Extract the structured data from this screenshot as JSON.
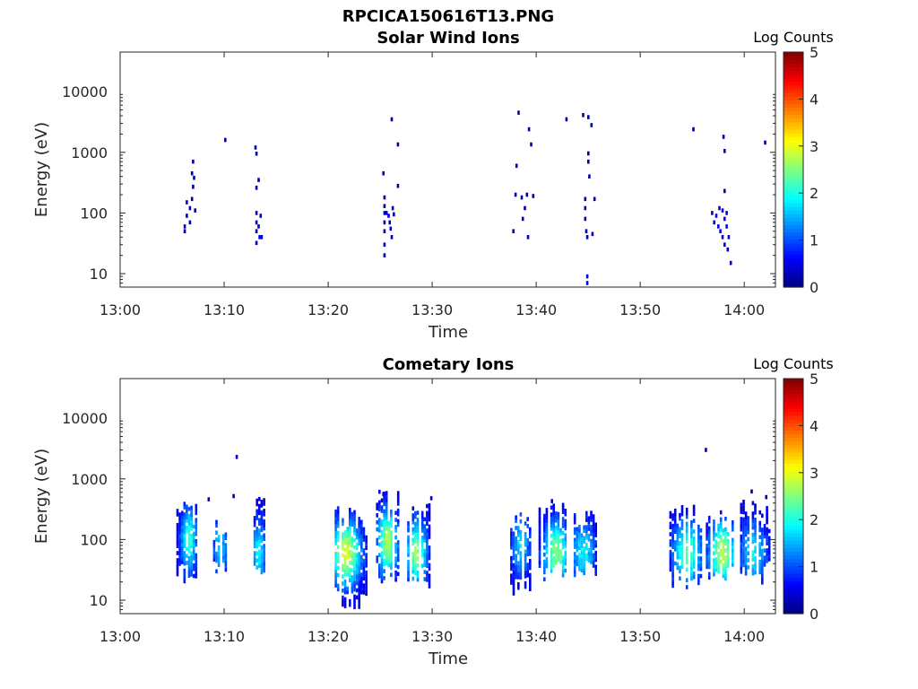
{
  "figure": {
    "main_title": "RPCICA150616T13.PNG"
  },
  "chart_data": [
    {
      "type": "heatmap",
      "title": "Solar Wind Ions",
      "xlabel": "Time",
      "ylabel": "Energy (eV)",
      "x_tick_labels": [
        "13:00",
        "13:10",
        "13:20",
        "13:30",
        "13:40",
        "13:50",
        "14:00"
      ],
      "x_ticks_min": [
        0,
        10,
        20,
        30,
        40,
        50,
        60
      ],
      "xlim_min": [
        0,
        63
      ],
      "y_tick_labels": [
        "10",
        "100",
        "1000",
        "10000"
      ],
      "y_ticks": [
        10,
        100,
        1000,
        10000
      ],
      "yscale": "log",
      "ylim": [
        6,
        45000
      ],
      "colorbar": {
        "label": "Log Counts",
        "ticks": [
          0,
          1,
          2,
          3,
          4,
          5
        ],
        "range": [
          0,
          5
        ],
        "colormap": "jet"
      },
      "cells": [
        [
          6.1,
          50,
          0.2
        ],
        [
          6.1,
          60,
          0.3
        ],
        [
          6.3,
          90,
          0.2
        ],
        [
          6.3,
          150,
          0.3
        ],
        [
          6.6,
          120,
          0.2
        ],
        [
          6.6,
          70,
          0.3
        ],
        [
          6.8,
          170,
          0.2
        ],
        [
          6.8,
          450,
          0.2
        ],
        [
          7.0,
          380,
          0.2
        ],
        [
          6.9,
          700,
          0.2
        ],
        [
          7.1,
          110,
          0.3
        ],
        [
          6.9,
          270,
          0.2
        ],
        [
          10.0,
          1600,
          0.2
        ],
        [
          12.9,
          1200,
          0.2
        ],
        [
          13.0,
          950,
          0.2
        ],
        [
          13.0,
          100,
          0.3
        ],
        [
          13.0,
          70,
          0.3
        ],
        [
          13.0,
          50,
          0.3
        ],
        [
          13.0,
          32,
          0.3
        ],
        [
          13.0,
          260,
          0.2
        ],
        [
          13.2,
          60,
          0.3
        ],
        [
          13.3,
          40,
          0.4
        ],
        [
          13.5,
          40,
          0.4
        ],
        [
          13.4,
          90,
          0.3
        ],
        [
          13.2,
          350,
          0.2
        ],
        [
          25.3,
          180,
          0.3
        ],
        [
          25.3,
          130,
          0.3
        ],
        [
          25.3,
          100,
          0.4
        ],
        [
          25.3,
          70,
          0.3
        ],
        [
          25.3,
          50,
          0.3
        ],
        [
          25.3,
          30,
          0.3
        ],
        [
          25.3,
          20,
          0.3
        ],
        [
          25.5,
          100,
          0.4
        ],
        [
          25.7,
          90,
          0.5
        ],
        [
          25.8,
          70,
          0.4
        ],
        [
          25.9,
          55,
          0.4
        ],
        [
          26.0,
          40,
          0.3
        ],
        [
          26.1,
          120,
          0.3
        ],
        [
          26.2,
          95,
          0.3
        ],
        [
          26.0,
          3500,
          0.2
        ],
        [
          25.2,
          450,
          0.2
        ],
        [
          26.6,
          1350,
          0.2
        ],
        [
          26.6,
          280,
          0.2
        ],
        [
          37.7,
          50,
          0.3
        ],
        [
          37.9,
          200,
          0.2
        ],
        [
          38.0,
          600,
          0.2
        ],
        [
          38.2,
          4500,
          0.2
        ],
        [
          38.6,
          80,
          0.3
        ],
        [
          38.8,
          120,
          0.2
        ],
        [
          39.0,
          200,
          0.2
        ],
        [
          39.1,
          40,
          0.4
        ],
        [
          39.2,
          2400,
          0.2
        ],
        [
          39.4,
          1350,
          0.2
        ],
        [
          39.6,
          190,
          0.2
        ],
        [
          38.5,
          180,
          0.2
        ],
        [
          42.8,
          3500,
          0.2
        ],
        [
          44.4,
          4100,
          0.2
        ],
        [
          44.6,
          170,
          0.3
        ],
        [
          44.6,
          120,
          0.3
        ],
        [
          44.6,
          80,
          0.3
        ],
        [
          44.7,
          50,
          0.3
        ],
        [
          44.8,
          40,
          0.3
        ],
        [
          44.8,
          9,
          0.4
        ],
        [
          44.8,
          7,
          0.4
        ],
        [
          44.9,
          960,
          0.2
        ],
        [
          44.9,
          700,
          0.2
        ],
        [
          44.9,
          3800,
          0.2
        ],
        [
          45.2,
          2800,
          0.2
        ],
        [
          45.3,
          45,
          0.3
        ],
        [
          45.5,
          170,
          0.2
        ],
        [
          45.0,
          400,
          0.2
        ],
        [
          55.0,
          2400,
          0.2
        ],
        [
          56.8,
          100,
          0.3
        ],
        [
          57.0,
          70,
          0.5
        ],
        [
          57.2,
          90,
          0.6
        ],
        [
          57.4,
          60,
          0.5
        ],
        [
          57.5,
          120,
          0.4
        ],
        [
          57.6,
          50,
          0.6
        ],
        [
          57.8,
          110,
          0.6
        ],
        [
          57.8,
          40,
          0.5
        ],
        [
          58.0,
          80,
          0.6
        ],
        [
          58.0,
          30,
          0.4
        ],
        [
          58.2,
          60,
          0.5
        ],
        [
          58.2,
          100,
          0.4
        ],
        [
          58.4,
          40,
          0.4
        ],
        [
          57.9,
          1800,
          0.2
        ],
        [
          58.0,
          1050,
          0.2
        ],
        [
          58.0,
          230,
          0.2
        ],
        [
          58.3,
          25,
          0.3
        ],
        [
          58.6,
          15,
          0.3
        ],
        [
          58.0,
          6,
          0.2
        ],
        [
          61.9,
          1450,
          0.2
        ]
      ]
    },
    {
      "type": "heatmap",
      "title": "Cometary Ions",
      "xlabel": "Time",
      "ylabel": "Energy (eV)",
      "x_tick_labels": [
        "13:00",
        "13:10",
        "13:20",
        "13:30",
        "13:40",
        "13:50",
        "14:00"
      ],
      "x_ticks_min": [
        0,
        10,
        20,
        30,
        40,
        50,
        60
      ],
      "xlim_min": [
        0,
        63
      ],
      "y_tick_labels": [
        "10",
        "100",
        "1000",
        "10000"
      ],
      "y_ticks": [
        10,
        100,
        1000,
        10000
      ],
      "yscale": "log",
      "ylim": [
        6,
        45000
      ],
      "colorbar": {
        "label": "Log Counts",
        "ticks": [
          0,
          1,
          2,
          3,
          4,
          5
        ],
        "range": [
          0,
          5
        ],
        "colormap": "jet"
      },
      "clusters": [
        {
          "t0": 5.4,
          "t1": 7.2,
          "emin": 18,
          "emax": 420,
          "peak": 1.8,
          "tpk": 6.5,
          "epk": 100
        },
        {
          "t0": 8.7,
          "t1": 10.2,
          "emin": 18,
          "emax": 260,
          "peak": 1.4,
          "tpk": 9.5,
          "epk": 70
        },
        {
          "t0": 12.6,
          "t1": 14.0,
          "emin": 15,
          "emax": 540,
          "peak": 1.6,
          "tpk": 13.2,
          "epk": 60
        },
        {
          "t0": 20.4,
          "t1": 23.6,
          "emin": 7,
          "emax": 380,
          "peak": 2.6,
          "tpk": 21.6,
          "epk": 60
        },
        {
          "t0": 24.6,
          "t1": 26.8,
          "emin": 18,
          "emax": 640,
          "peak": 2.4,
          "tpk": 25.6,
          "epk": 90
        },
        {
          "t0": 27.6,
          "t1": 29.8,
          "emin": 15,
          "emax": 420,
          "peak": 2.2,
          "tpk": 28.4,
          "epk": 60
        },
        {
          "t0": 37.5,
          "t1": 39.5,
          "emin": 10,
          "emax": 320,
          "peak": 1.4,
          "tpk": 38.4,
          "epk": 80
        },
        {
          "t0": 40.0,
          "t1": 42.8,
          "emin": 18,
          "emax": 420,
          "peak": 2.2,
          "tpk": 41.8,
          "epk": 60
        },
        {
          "t0": 43.6,
          "t1": 46.2,
          "emin": 18,
          "emax": 300,
          "peak": 1.5,
          "tpk": 44.4,
          "epk": 60
        },
        {
          "t0": 52.8,
          "t1": 55.9,
          "emin": 15,
          "emax": 360,
          "peak": 2.0,
          "tpk": 54.4,
          "epk": 60
        },
        {
          "t0": 56.3,
          "t1": 59.2,
          "emin": 18,
          "emax": 330,
          "peak": 2.4,
          "tpk": 57.8,
          "epk": 60
        },
        {
          "t0": 59.6,
          "t1": 62.4,
          "emin": 18,
          "emax": 450,
          "peak": 1.5,
          "tpk": 60.8,
          "epk": 60
        }
      ],
      "cells": [
        [
          11.1,
          2300,
          0.6
        ],
        [
          56.2,
          3000,
          0.3
        ],
        [
          8.4,
          460,
          0.3
        ],
        [
          10.8,
          520,
          0.3
        ],
        [
          25.2,
          560,
          0.3
        ],
        [
          29.8,
          480,
          0.3
        ],
        [
          41.4,
          430,
          0.3
        ],
        [
          60.6,
          620,
          0.3
        ],
        [
          62.0,
          500,
          0.3
        ]
      ]
    }
  ]
}
